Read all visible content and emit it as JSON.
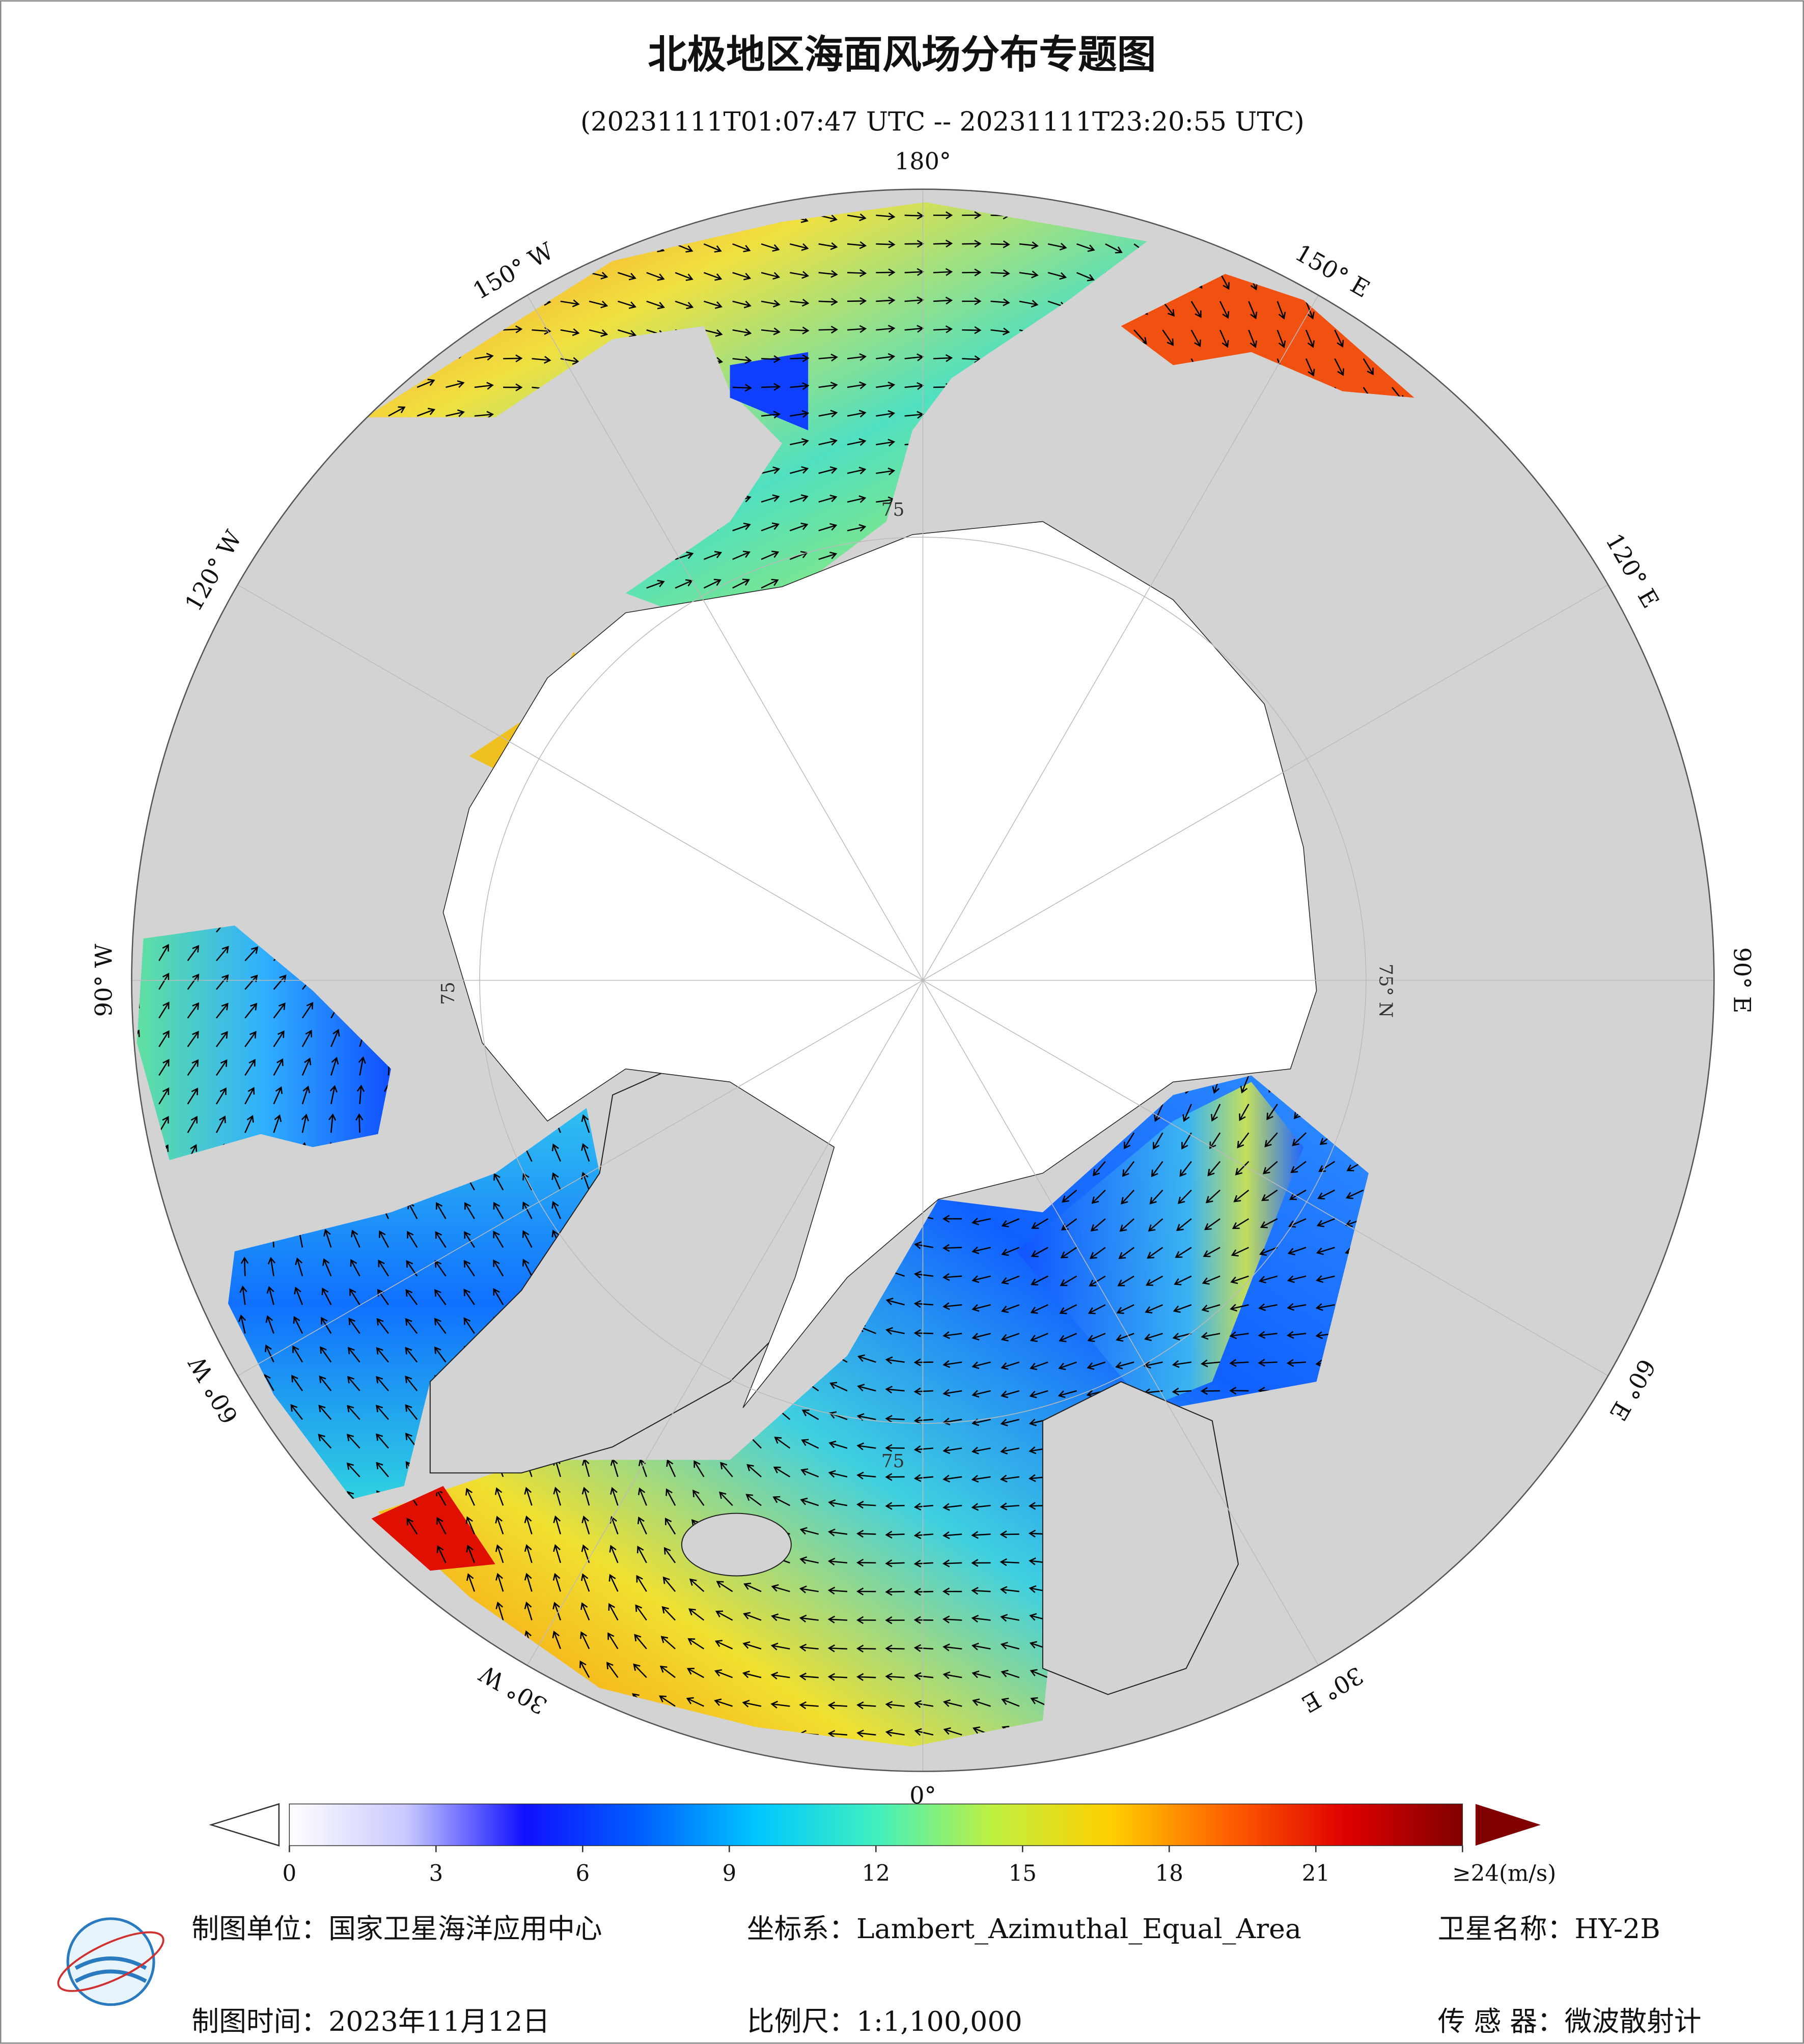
{
  "header": {
    "title": "北极地区海面风场分布专题图",
    "subtitle": "(20231111T01:07:47 UTC -- 20231111T23:20:55 UTC)"
  },
  "map": {
    "longitude_labels": [
      "180°",
      "150° E",
      "120° E",
      "90° E",
      "60° E",
      "30° E",
      "0°",
      "30° W",
      "60° W",
      "90° W",
      "120° W",
      "150° W"
    ],
    "latitude_labels": [
      "75° N",
      "75",
      "75",
      "75"
    ]
  },
  "colorbar": {
    "lim": [
      0,
      24
    ],
    "ticks": [
      0,
      3,
      6,
      9,
      12,
      15,
      18,
      21,
      {
        "value": 24,
        "label": "≥24(m/s)"
      }
    ],
    "colors": [
      "#ffffff",
      "#c8c8ff",
      "#1010ff",
      "#0060ff",
      "#00c8ff",
      "#40f0c0",
      "#c0f040",
      "#ffd000",
      "#ff6000",
      "#e00000",
      "#800000"
    ]
  },
  "footer": {
    "unit": "制图单位：国家卫星海洋应用中心",
    "projection": "坐标系：Lambert_Azimuthal_Equal_Area",
    "satellite": "卫星名称：HY-2B",
    "date": "制图时间：2023年11月12日",
    "scale": "比例尺：1:1,100,000",
    "sensor": "传 感 器：微波散射计"
  }
}
